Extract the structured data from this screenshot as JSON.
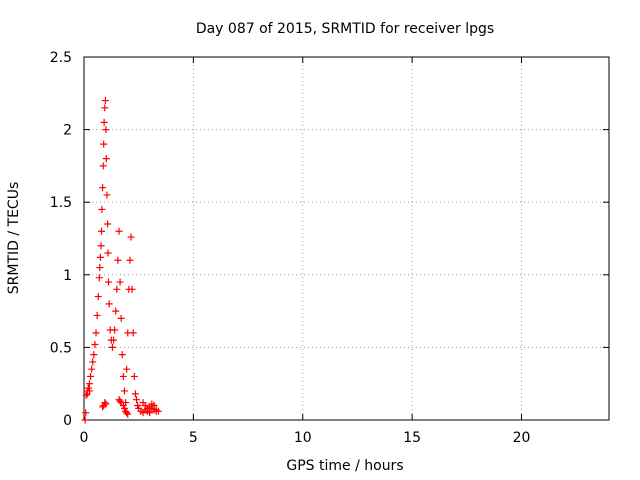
{
  "chart_data": {
    "type": "scatter",
    "title": "Day 087 of 2015, SRMTID for receiver lpgs",
    "xlabel": "GPS time / hours",
    "ylabel": "SRMTID / TECUs",
    "xlim": [
      0,
      24
    ],
    "ylim": [
      0,
      2.5
    ],
    "xticks": [
      0,
      5,
      10,
      15,
      20
    ],
    "xtick_labels": [
      "0",
      "5",
      "10",
      "15",
      "20"
    ],
    "yticks": [
      0,
      0.5,
      1,
      1.5,
      2,
      2.5
    ],
    "ytick_labels": [
      "0",
      "0.5",
      "1",
      "1.5",
      "2",
      "2.5"
    ],
    "grid": true,
    "marker": "+",
    "series": [
      {
        "name": "SRMTID",
        "color": "#ff0000",
        "x": [
          0.05,
          0.1,
          0.15,
          0.2,
          0.25,
          0.3,
          0.35,
          0.4,
          0.45,
          0.5,
          0.55,
          0.6,
          0.65,
          0.7,
          0.72,
          0.75,
          0.78,
          0.8,
          0.82,
          0.85,
          0.88,
          0.9,
          0.92,
          0.95,
          0.98,
          1.0,
          1.02,
          1.05,
          1.08,
          1.1,
          1.12,
          1.15,
          1.2,
          1.25,
          1.3,
          1.35,
          1.4,
          1.45,
          1.5,
          1.55,
          1.6,
          1.65,
          1.7,
          1.75,
          1.8,
          1.85,
          1.9,
          1.95,
          2.0,
          2.05,
          2.1,
          2.15,
          2.2,
          2.25,
          2.3,
          2.35,
          2.4,
          2.45,
          2.5,
          2.6,
          2.7,
          2.8,
          2.9,
          3.0,
          3.1,
          3.2,
          3.3,
          3.4,
          0.85,
          0.9,
          0.95,
          1.0,
          1.6,
          1.65,
          1.7,
          1.8,
          1.85,
          1.9,
          1.95,
          2.0,
          2.7,
          2.8,
          2.9,
          3.0,
          3.1,
          3.2,
          3.3,
          0.08,
          0.15,
          0.2,
          0.25
        ],
        "y": [
          0.0,
          0.17,
          0.2,
          0.22,
          0.25,
          0.3,
          0.35,
          0.4,
          0.45,
          0.52,
          0.6,
          0.72,
          0.85,
          0.98,
          1.05,
          1.12,
          1.2,
          1.3,
          1.45,
          1.6,
          1.75,
          1.9,
          2.05,
          2.15,
          2.2,
          2.0,
          1.8,
          1.55,
          1.35,
          1.15,
          0.95,
          0.8,
          0.62,
          0.55,
          0.5,
          0.55,
          0.62,
          0.75,
          0.9,
          1.1,
          1.3,
          0.95,
          0.7,
          0.45,
          0.3,
          0.2,
          0.12,
          0.35,
          0.6,
          0.9,
          1.1,
          1.26,
          0.9,
          0.6,
          0.3,
          0.18,
          0.14,
          0.1,
          0.08,
          0.06,
          0.05,
          0.07,
          0.06,
          0.05,
          0.08,
          0.1,
          0.07,
          0.06,
          0.09,
          0.1,
          0.12,
          0.11,
          0.14,
          0.13,
          0.12,
          0.1,
          0.08,
          0.06,
          0.05,
          0.04,
          0.12,
          0.1,
          0.08,
          0.09,
          0.11,
          0.07,
          0.06,
          0.05,
          0.18,
          0.22,
          0.2
        ]
      }
    ]
  }
}
